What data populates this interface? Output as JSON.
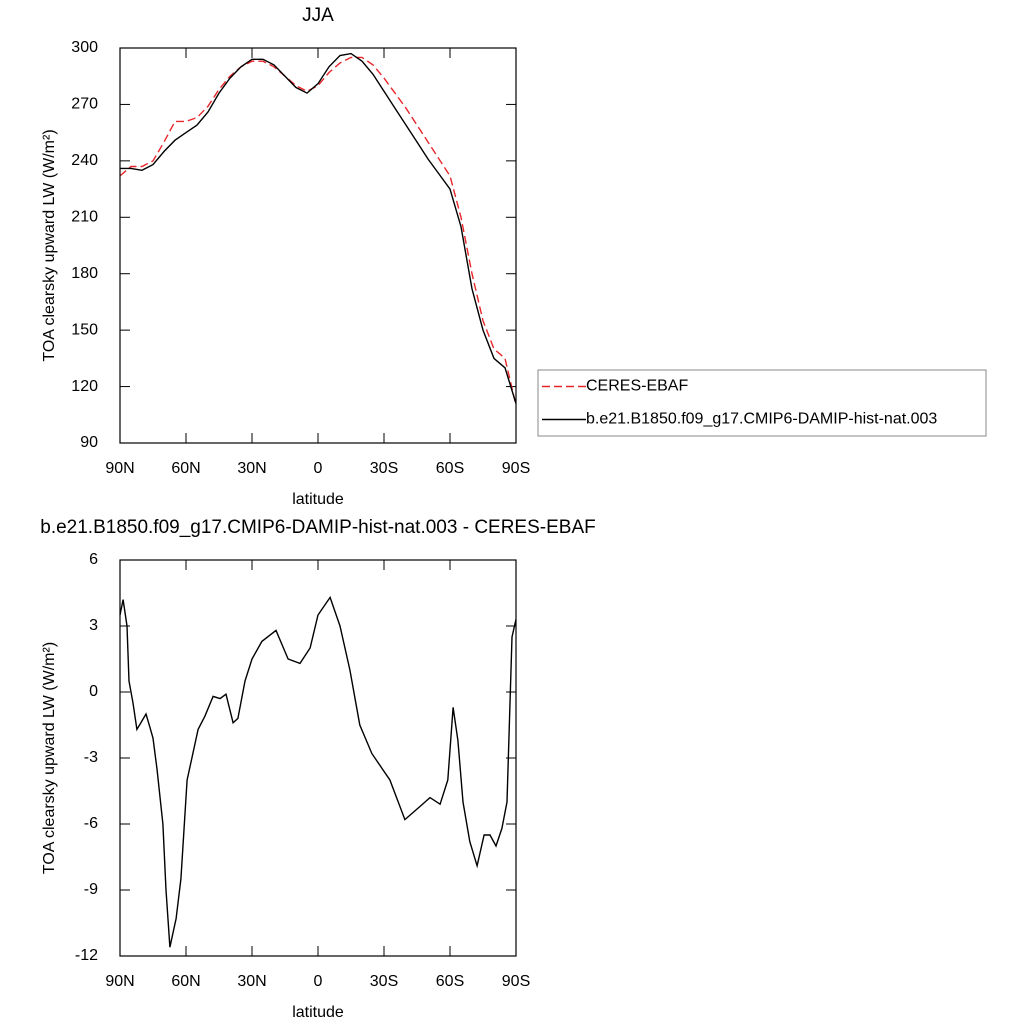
{
  "chart_data": [
    {
      "type": "line",
      "title": "JJA",
      "xlabel": "latitude",
      "ylabel": "TOA clearsky upward LW (W/m²)",
      "x": [
        90,
        85,
        80,
        75,
        70,
        65,
        60,
        55,
        50,
        45,
        40,
        35,
        30,
        25,
        20,
        15,
        10,
        5,
        0,
        -5,
        -10,
        -15,
        -20,
        -25,
        -30,
        -35,
        -40,
        -45,
        -50,
        -55,
        -60,
        -65,
        -70,
        -75,
        -80,
        -85,
        -90
      ],
      "series": [
        {
          "name": "CERES-EBAF",
          "color": "#e8262a",
          "dash": true,
          "values": [
            232,
            237,
            237,
            240,
            250,
            261,
            261,
            263,
            269,
            278,
            285,
            290,
            293,
            293,
            290,
            285,
            280,
            277,
            280,
            287,
            292,
            295,
            295,
            291,
            284,
            276,
            268,
            259,
            250,
            241,
            232,
            210,
            180,
            155,
            140,
            135,
            110
          ]
        },
        {
          "name": "b.e21.B1850.f09_g17.CMIP6-DAMIP-hist-nat.003",
          "color": "#000000",
          "dash": false,
          "values": [
            236,
            236,
            235,
            238,
            245,
            251,
            255,
            259,
            266,
            276,
            284,
            290,
            294,
            294,
            291,
            285,
            279,
            276,
            281,
            290,
            296,
            297,
            293,
            286,
            277,
            268,
            259,
            250,
            241,
            233,
            225,
            205,
            172,
            150,
            135,
            130,
            111
          ]
        }
      ],
      "xlim": [
        90,
        -90
      ],
      "xticks": [
        {
          "value": 90,
          "label": "90N"
        },
        {
          "value": 60,
          "label": "60N"
        },
        {
          "value": 30,
          "label": "30N"
        },
        0,
        {
          "value": -30,
          "label": "30S"
        },
        {
          "value": -60,
          "label": "60S"
        },
        {
          "value": -90,
          "label": "90S"
        }
      ],
      "ylim": [
        90,
        300
      ],
      "yticks": [
        90,
        120,
        150,
        180,
        210,
        240,
        270,
        300
      ],
      "legend": "outside-right"
    },
    {
      "type": "line",
      "title": "b.e21.B1850.f09_g17.CMIP6-DAMIP-hist-nat.003 - CERES-EBAF",
      "xlabel": "latitude",
      "ylabel": "TOA clearsky upward LW (W/m²)",
      "x": [
        90,
        88.6,
        86.8,
        85.9,
        84.1,
        82.3,
        80.5,
        78.2,
        76.4,
        75,
        73.2,
        70.5,
        69.1,
        67.3,
        64.5,
        62.3,
        59.5,
        57.3,
        54.5,
        51.4,
        47.7,
        44.5,
        41.8,
        38.6,
        36.4,
        33.2,
        30,
        25.5,
        19.1,
        13.6,
        8.2,
        3.6,
        0,
        -5.5,
        -10,
        -14.5,
        -19,
        -24.5,
        -32.7,
        -39.5,
        -46.4,
        -50.9,
        -55.5,
        -59,
        -61.4,
        -63.6,
        -65.9,
        -69,
        -72.3,
        -75.5,
        -78.2,
        -80.9,
        -83.6,
        -85.9,
        -88.2,
        -90
      ],
      "values": [
        3.5,
        4.2,
        3,
        0.5,
        -0.5,
        -1.7,
        -1.4,
        -1,
        -1.6,
        -2.1,
        -3.5,
        -6,
        -9,
        -11.6,
        -10.3,
        -8.5,
        -4,
        -3,
        -1.7,
        -1.1,
        -0.2,
        -0.3,
        -0.1,
        -1.4,
        -1.2,
        0.5,
        1.5,
        2.3,
        2.8,
        1.5,
        1.3,
        2,
        3.5,
        4.3,
        3,
        1,
        -1.5,
        -2.8,
        -4,
        -5.8,
        -5.2,
        -4.8,
        -5.1,
        -4,
        -0.7,
        -2.2,
        -5,
        -6.8,
        -7.9,
        -6.5,
        -6.5,
        -7,
        -6.2,
        -5,
        2.5,
        3.3
      ],
      "color": "#000000",
      "xlim": [
        90,
        -90
      ],
      "xticks": [
        {
          "value": 90,
          "label": "90N"
        },
        {
          "value": 60,
          "label": "60N"
        },
        {
          "value": 30,
          "label": "30N"
        },
        0,
        {
          "value": -30,
          "label": "30S"
        },
        {
          "value": -60,
          "label": "60S"
        },
        {
          "value": -90,
          "label": "90S"
        }
      ],
      "ylim": [
        -12,
        6
      ],
      "yticks": [
        -12,
        -9,
        -6,
        -3,
        0,
        3,
        6
      ]
    }
  ]
}
